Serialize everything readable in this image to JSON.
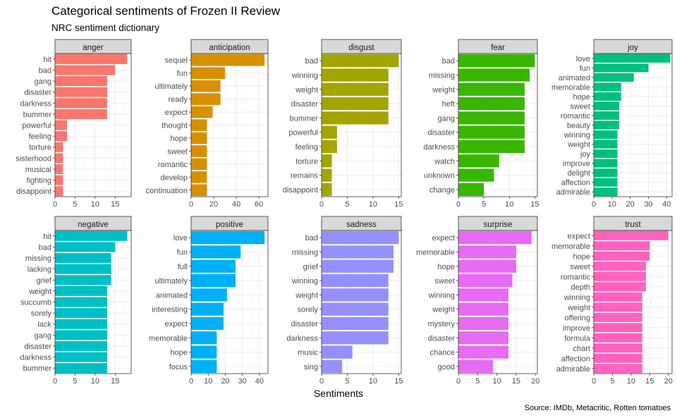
{
  "title": "Categorical sentiments of Frozen II Review",
  "subtitle": "NRC sentiment dictionary",
  "xlabel": "Sentiments",
  "caption": "Source: IMDb, Metacritic, Rotten tomatoes",
  "chart_data": [
    {
      "type": "bar",
      "orientation": "horizontal",
      "facet": "anger",
      "color": "#F8766D",
      "xlim": [
        0,
        19
      ],
      "xticks": [
        0,
        5,
        10,
        15
      ],
      "categories": [
        "hit",
        "bad",
        "gang",
        "disaster",
        "darkness",
        "bummer",
        "powerful",
        "feeling",
        "torture",
        "sisterhood",
        "musical",
        "fighting",
        "disappoint"
      ],
      "values": [
        18,
        15,
        13,
        13,
        13,
        13,
        3,
        3,
        2,
        2,
        2,
        2,
        2
      ]
    },
    {
      "type": "bar",
      "orientation": "horizontal",
      "facet": "anticipation",
      "color": "#D89000",
      "xlim": [
        0,
        68
      ],
      "xticks": [
        0,
        20,
        40,
        60
      ],
      "categories": [
        "sequel",
        "fun",
        "ultimately",
        "ready",
        "expect",
        "thought",
        "hope",
        "sweet",
        "romantic",
        "develop",
        "continuation"
      ],
      "values": [
        65,
        30,
        26,
        26,
        19,
        14,
        14,
        14,
        14,
        14,
        14
      ]
    },
    {
      "type": "bar",
      "orientation": "horizontal",
      "facet": "disgust",
      "color": "#A3A500",
      "xlim": [
        0,
        15.5
      ],
      "xticks": [
        0,
        5,
        10,
        15
      ],
      "categories": [
        "bad",
        "winning",
        "weight",
        "disaster",
        "bummer",
        "powerful",
        "feeling",
        "torture",
        "remains",
        "disappoint"
      ],
      "values": [
        15,
        13,
        13,
        13,
        13,
        3,
        3,
        2,
        2,
        2
      ]
    },
    {
      "type": "bar",
      "orientation": "horizontal",
      "facet": "fear",
      "color": "#39B600",
      "xlim": [
        0,
        15.5
      ],
      "xticks": [
        0,
        5,
        10,
        15
      ],
      "categories": [
        "bad",
        "missing",
        "weight",
        "heft",
        "gang",
        "disaster",
        "darkness",
        "watch",
        "unknown",
        "change"
      ],
      "values": [
        15,
        14,
        13,
        13,
        13,
        13,
        13,
        8,
        7,
        5
      ]
    },
    {
      "type": "bar",
      "orientation": "horizontal",
      "facet": "joy",
      "color": "#00BF7D",
      "xlim": [
        0,
        43
      ],
      "xticks": [
        0,
        10,
        20,
        30,
        40
      ],
      "categories": [
        "love",
        "fun",
        "animated",
        "memorable",
        "hope",
        "sweet",
        "romantic",
        "beauty",
        "winning",
        "weight",
        "joy",
        "improve",
        "delight",
        "affection",
        "admirable"
      ],
      "values": [
        42,
        30,
        22,
        15,
        15,
        14,
        14,
        14,
        13,
        13,
        13,
        13,
        13,
        13,
        13
      ]
    },
    {
      "type": "bar",
      "orientation": "horizontal",
      "facet": "negative",
      "color": "#00BFC4",
      "xlim": [
        0,
        19
      ],
      "xticks": [
        0,
        5,
        10,
        15
      ],
      "categories": [
        "hit",
        "bad",
        "missing",
        "lacking",
        "grief",
        "weight",
        "succumb",
        "sorely",
        "lack",
        "gang",
        "disaster",
        "darkness",
        "bummer"
      ],
      "values": [
        18,
        15,
        14,
        14,
        14,
        13,
        13,
        13,
        13,
        13,
        13,
        13,
        13
      ]
    },
    {
      "type": "bar",
      "orientation": "horizontal",
      "facet": "positive",
      "color": "#00B0F6",
      "xlim": [
        0,
        45
      ],
      "xticks": [
        0,
        10,
        20,
        30,
        40
      ],
      "categories": [
        "love",
        "fun",
        "full",
        "ultimately",
        "animated",
        "interesting",
        "expect",
        "memorable",
        "hope",
        "focus"
      ],
      "values": [
        43,
        29,
        26,
        26,
        21,
        19,
        19,
        15,
        15,
        15
      ]
    },
    {
      "type": "bar",
      "orientation": "horizontal",
      "facet": "sadness",
      "color": "#9590FF",
      "xlim": [
        0,
        15.5
      ],
      "xticks": [
        0,
        5,
        10,
        15
      ],
      "categories": [
        "bad",
        "missing",
        "grief",
        "winning",
        "weight",
        "sorely",
        "disaster",
        "darkness",
        "music",
        "sing"
      ],
      "values": [
        15,
        14,
        14,
        13,
        13,
        13,
        13,
        13,
        6,
        4
      ]
    },
    {
      "type": "bar",
      "orientation": "horizontal",
      "facet": "surprise",
      "color": "#E76BF3",
      "xlim": [
        0,
        20.5
      ],
      "xticks": [
        0,
        5,
        10,
        15,
        20
      ],
      "categories": [
        "expect",
        "memorable",
        "hope",
        "sweet",
        "winning",
        "weight",
        "mystery",
        "disaster",
        "chance",
        "good"
      ],
      "values": [
        19,
        15,
        15,
        14,
        13,
        13,
        13,
        13,
        13,
        9
      ]
    },
    {
      "type": "bar",
      "orientation": "horizontal",
      "facet": "trust",
      "color": "#FF62BC",
      "xlim": [
        0,
        21
      ],
      "xticks": [
        0,
        5,
        10,
        15,
        20
      ],
      "categories": [
        "expect",
        "memorable",
        "hope",
        "sweet",
        "romantic",
        "depth",
        "winning",
        "weight",
        "offering",
        "improve",
        "formula",
        "chart",
        "affection",
        "admirable"
      ],
      "values": [
        20,
        15,
        15,
        14,
        14,
        14,
        13,
        13,
        13,
        13,
        13,
        13,
        13,
        13
      ]
    }
  ]
}
